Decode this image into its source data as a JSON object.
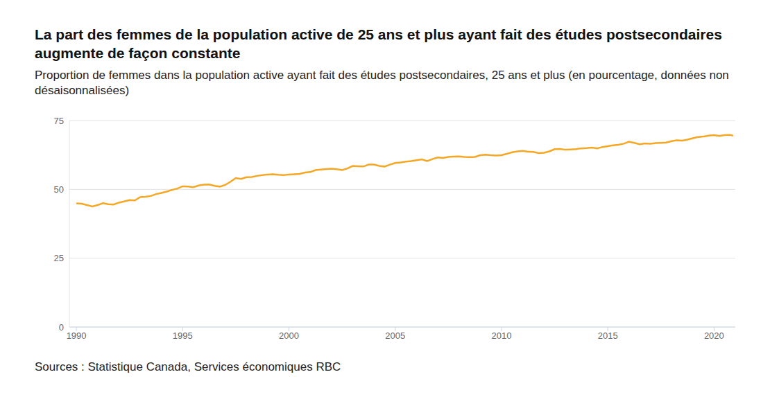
{
  "chart_data": {
    "type": "line",
    "title": "La part des femmes de la population active de 25 ans et plus ayant fait des études postsecondaires augmente de façon constante",
    "subtitle": "Proportion de femmes dans la population active ayant fait des études postsecondaires, 25 ans et plus (en pourcentage, données non désaisonnalisées)",
    "source": "Sources : Statistique Canada, Services économiques RBC",
    "color": "#f5a623",
    "grid": "y",
    "xlim": [
      1989.67,
      2021.0
    ],
    "xticks": [
      1990,
      1995,
      2000,
      2005,
      2010,
      2015,
      2020
    ],
    "ylim": [
      0,
      75
    ],
    "yticks": [
      0,
      25,
      50,
      75
    ],
    "x": [
      1990,
      1990.25,
      1990.5,
      1990.75,
      1991,
      1991.25,
      1991.5,
      1991.75,
      1992,
      1992.25,
      1992.5,
      1992.75,
      1993,
      1993.25,
      1993.5,
      1993.75,
      1994,
      1994.25,
      1994.5,
      1994.75,
      1995,
      1995.25,
      1995.5,
      1995.75,
      1996,
      1996.25,
      1996.5,
      1996.75,
      1997,
      1997.25,
      1997.5,
      1997.75,
      1998,
      1998.25,
      1998.5,
      1998.75,
      1999,
      1999.25,
      1999.5,
      1999.75,
      2000,
      2000.25,
      2000.5,
      2000.75,
      2001,
      2001.25,
      2001.5,
      2001.75,
      2002,
      2002.25,
      2002.5,
      2002.75,
      2003,
      2003.25,
      2003.5,
      2003.75,
      2004,
      2004.25,
      2004.5,
      2004.75,
      2005,
      2005.25,
      2005.5,
      2005.75,
      2006,
      2006.25,
      2006.5,
      2006.75,
      2007,
      2007.25,
      2007.5,
      2007.75,
      2008,
      2008.25,
      2008.5,
      2008.75,
      2009,
      2009.25,
      2009.5,
      2009.75,
      2010,
      2010.25,
      2010.5,
      2010.75,
      2011,
      2011.25,
      2011.5,
      2011.75,
      2012,
      2012.25,
      2012.5,
      2012.75,
      2013,
      2013.25,
      2013.5,
      2013.75,
      2014,
      2014.25,
      2014.5,
      2014.75,
      2015,
      2015.25,
      2015.5,
      2015.75,
      2016,
      2016.25,
      2016.5,
      2016.75,
      2017,
      2017.25,
      2017.5,
      2017.75,
      2018,
      2018.25,
      2018.5,
      2018.75,
      2019,
      2019.25,
      2019.5,
      2019.75,
      2020,
      2020.25,
      2020.5,
      2020.75,
      2020.9
    ],
    "values": [
      44.9,
      44.8,
      44.3,
      43.8,
      44.3,
      45.0,
      44.6,
      44.5,
      45.2,
      45.6,
      46.1,
      46.0,
      47.2,
      47.3,
      47.6,
      48.3,
      48.7,
      49.2,
      49.8,
      50.3,
      51.1,
      51.0,
      50.8,
      51.4,
      51.7,
      51.8,
      51.3,
      51.0,
      51.6,
      52.8,
      54.1,
      53.8,
      54.4,
      54.5,
      54.9,
      55.2,
      55.4,
      55.5,
      55.3,
      55.2,
      55.4,
      55.5,
      55.6,
      56.1,
      56.3,
      57.0,
      57.2,
      57.4,
      57.5,
      57.3,
      57.0,
      57.6,
      58.5,
      58.4,
      58.3,
      59.0,
      59.0,
      58.5,
      58.3,
      59.0,
      59.6,
      59.8,
      60.1,
      60.3,
      60.6,
      60.9,
      60.3,
      61.0,
      61.6,
      61.4,
      61.8,
      61.9,
      62.0,
      61.8,
      61.7,
      61.8,
      62.4,
      62.6,
      62.4,
      62.3,
      62.4,
      62.9,
      63.5,
      63.8,
      64.0,
      63.7,
      63.6,
      63.2,
      63.3,
      63.8,
      64.6,
      64.7,
      64.4,
      64.5,
      64.6,
      64.9,
      65.0,
      65.2,
      64.9,
      65.4,
      65.7,
      66.0,
      66.2,
      66.6,
      67.3,
      66.9,
      66.4,
      66.7,
      66.6,
      66.8,
      66.9,
      67.0,
      67.5,
      67.8,
      67.7,
      68.1,
      68.6,
      69.0,
      69.2,
      69.5,
      69.7,
      69.4,
      69.7,
      69.8,
      69.5
    ]
  }
}
